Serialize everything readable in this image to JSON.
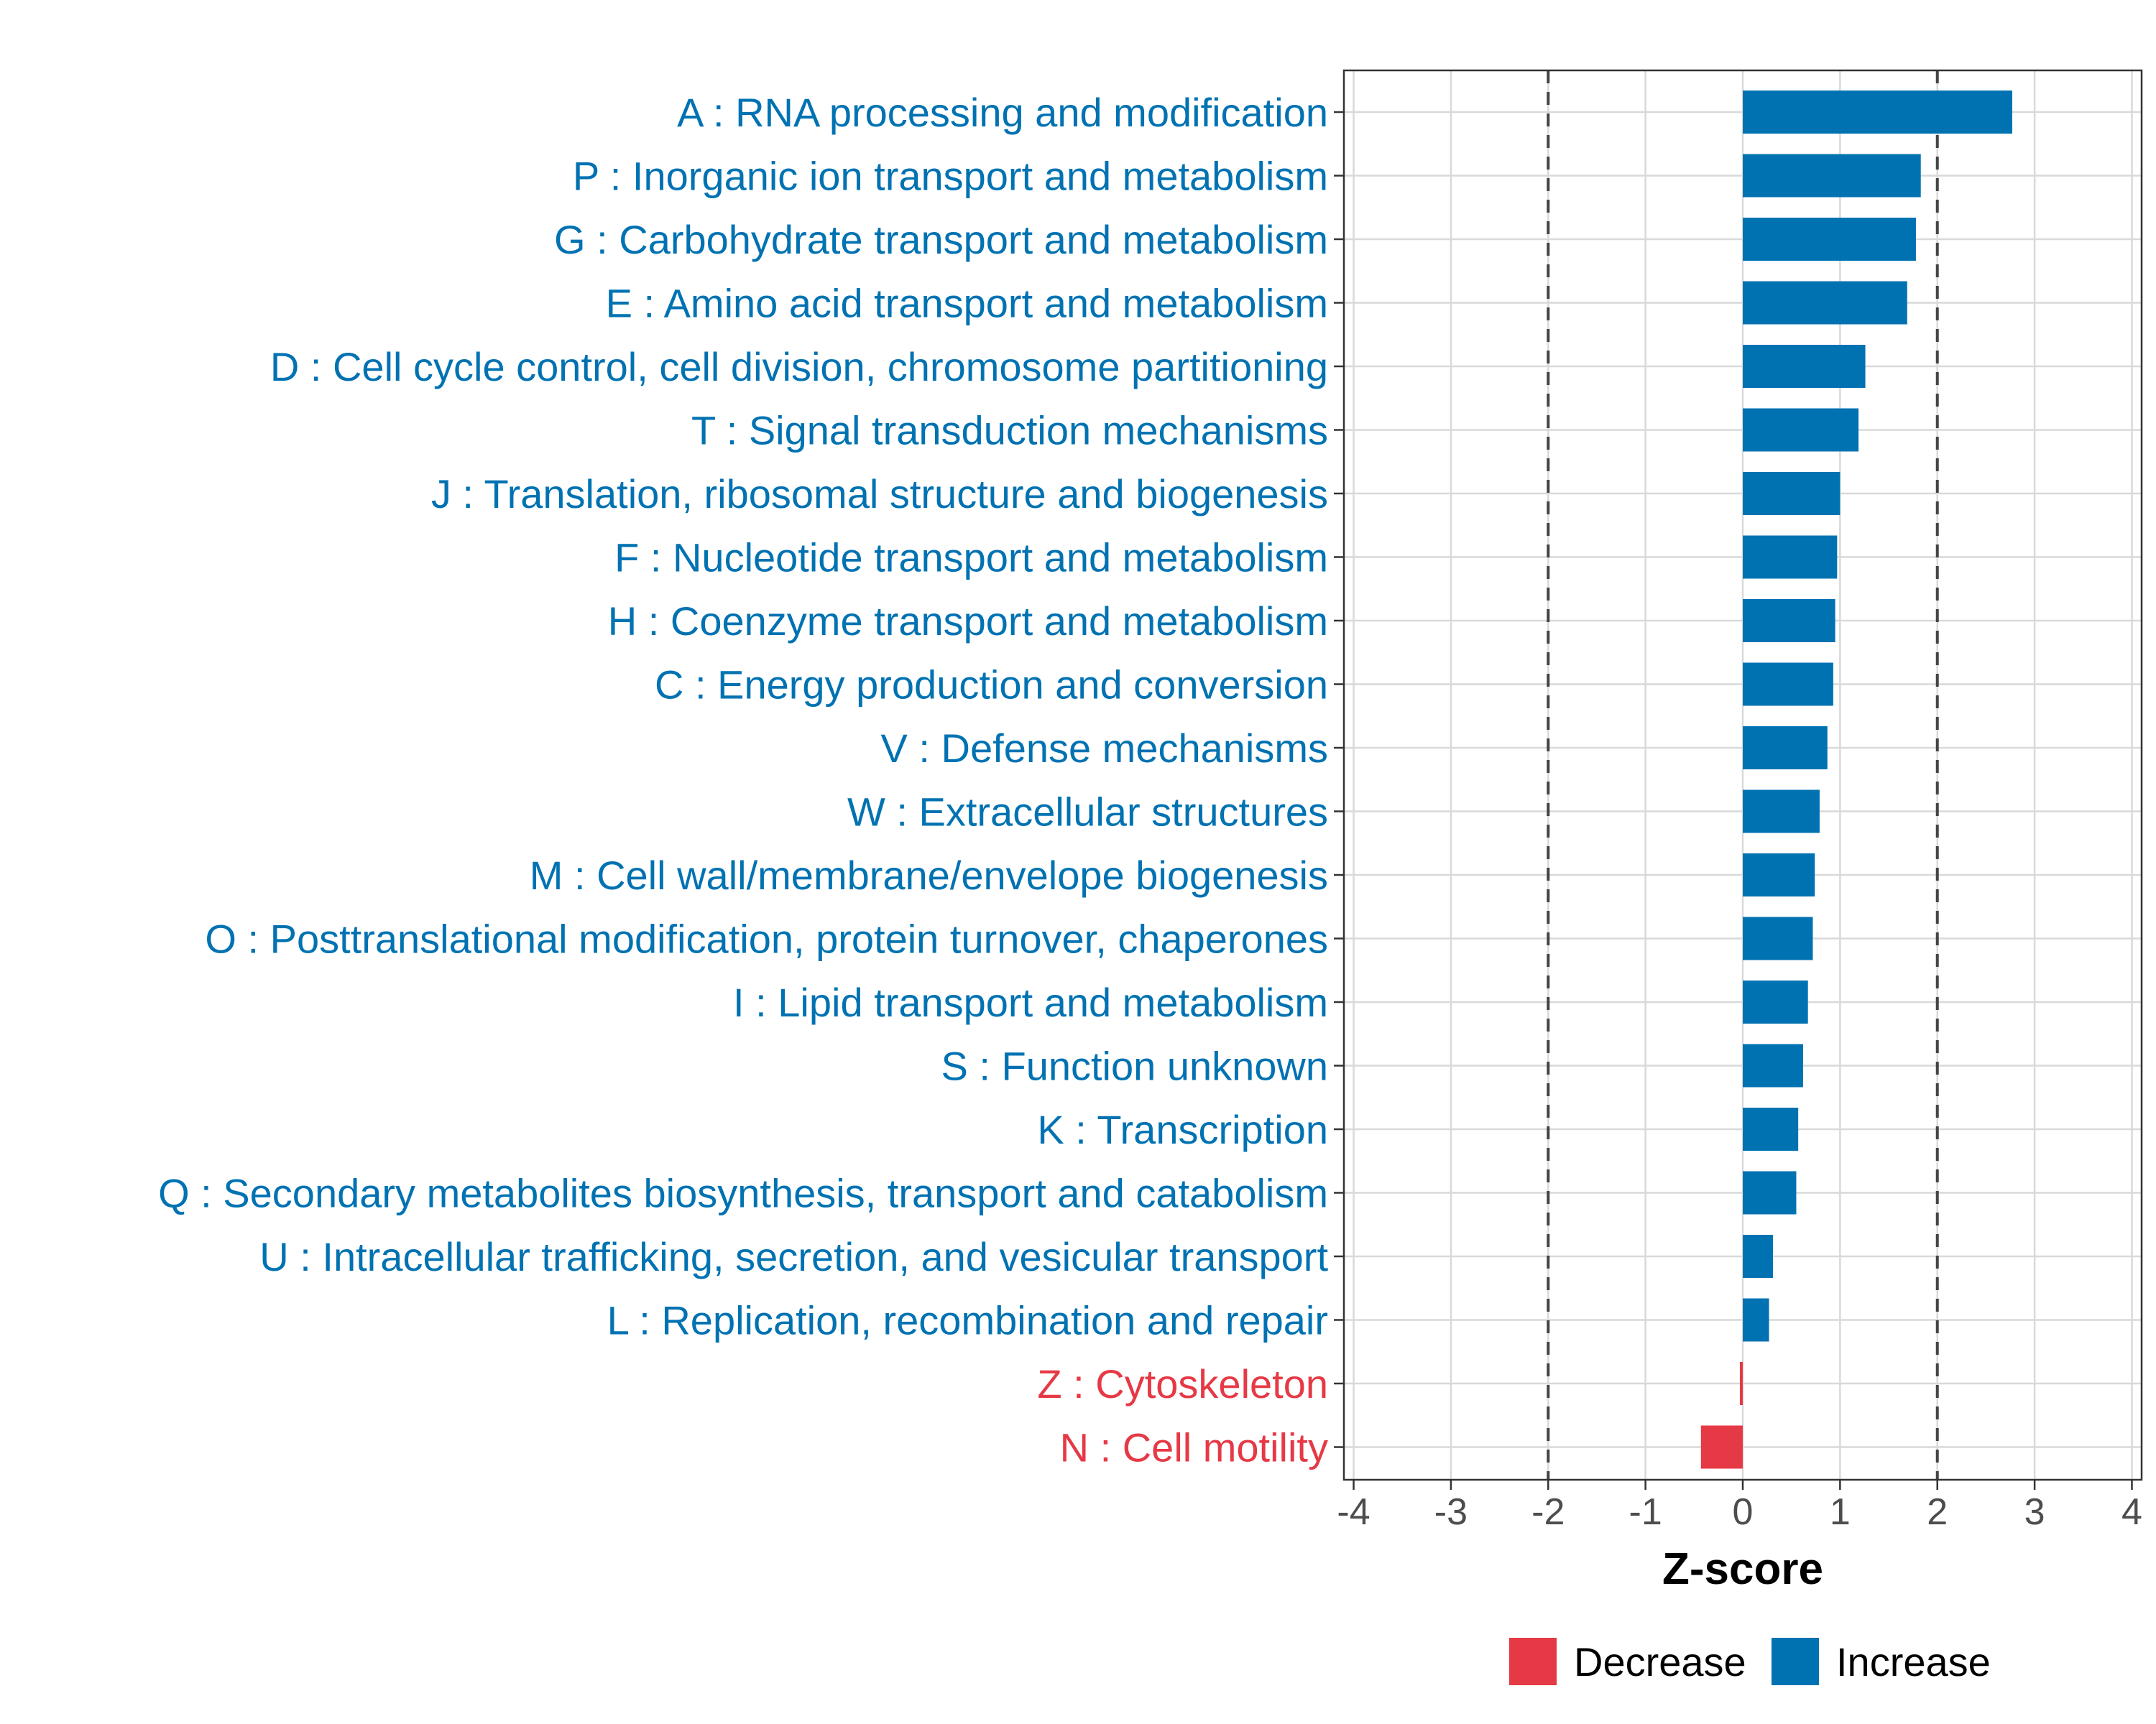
{
  "chart_data": {
    "type": "bar",
    "orientation": "horizontal",
    "xlabel": "Z-score",
    "xlim": [
      -4.1,
      4.1
    ],
    "xticks": [
      -4,
      -3,
      -2,
      -1,
      0,
      1,
      2,
      3,
      4
    ],
    "xtick_labels": [
      "-4",
      "-3",
      "-2",
      "-1",
      "0",
      "1",
      "2",
      "3",
      "4"
    ],
    "reference_lines": [
      -2,
      2
    ],
    "grid": true,
    "colors": {
      "Increase": "#0072b2",
      "Decrease": "#e63946"
    },
    "legend": {
      "position": "bottom",
      "entries": [
        {
          "label": "Decrease",
          "key": "Decrease"
        },
        {
          "label": "Increase",
          "key": "Increase"
        }
      ]
    },
    "categories": [
      "A : RNA processing and modification",
      "P : Inorganic ion transport and metabolism",
      "G : Carbohydrate transport and metabolism",
      "E : Amino acid transport and metabolism",
      "D : Cell cycle control, cell division, chromosome partitioning",
      "T : Signal transduction mechanisms",
      "J : Translation, ribosomal structure and biogenesis",
      "F : Nucleotide transport and metabolism",
      "H : Coenzyme transport and metabolism",
      "C : Energy production and conversion",
      "V : Defense mechanisms",
      "W : Extracellular structures",
      "M : Cell wall/membrane/envelope biogenesis",
      "O : Posttranslational modification, protein turnover, chaperones",
      "I : Lipid transport and metabolism",
      "S : Function unknown",
      "K : Transcription",
      "Q : Secondary metabolites biosynthesis, transport and catabolism",
      "U : Intracellular trafficking, secretion, and vesicular transport",
      "L : Replication, recombination and repair",
      "Z : Cytoskeleton",
      "N : Cell motility"
    ],
    "values": [
      2.77,
      1.83,
      1.78,
      1.69,
      1.26,
      1.19,
      1.0,
      0.97,
      0.95,
      0.93,
      0.87,
      0.79,
      0.74,
      0.72,
      0.67,
      0.62,
      0.57,
      0.55,
      0.31,
      0.27,
      -0.03,
      -0.43
    ],
    "groups": [
      "Increase",
      "Increase",
      "Increase",
      "Increase",
      "Increase",
      "Increase",
      "Increase",
      "Increase",
      "Increase",
      "Increase",
      "Increase",
      "Increase",
      "Increase",
      "Increase",
      "Increase",
      "Increase",
      "Increase",
      "Increase",
      "Increase",
      "Increase",
      "Decrease",
      "Decrease"
    ]
  }
}
